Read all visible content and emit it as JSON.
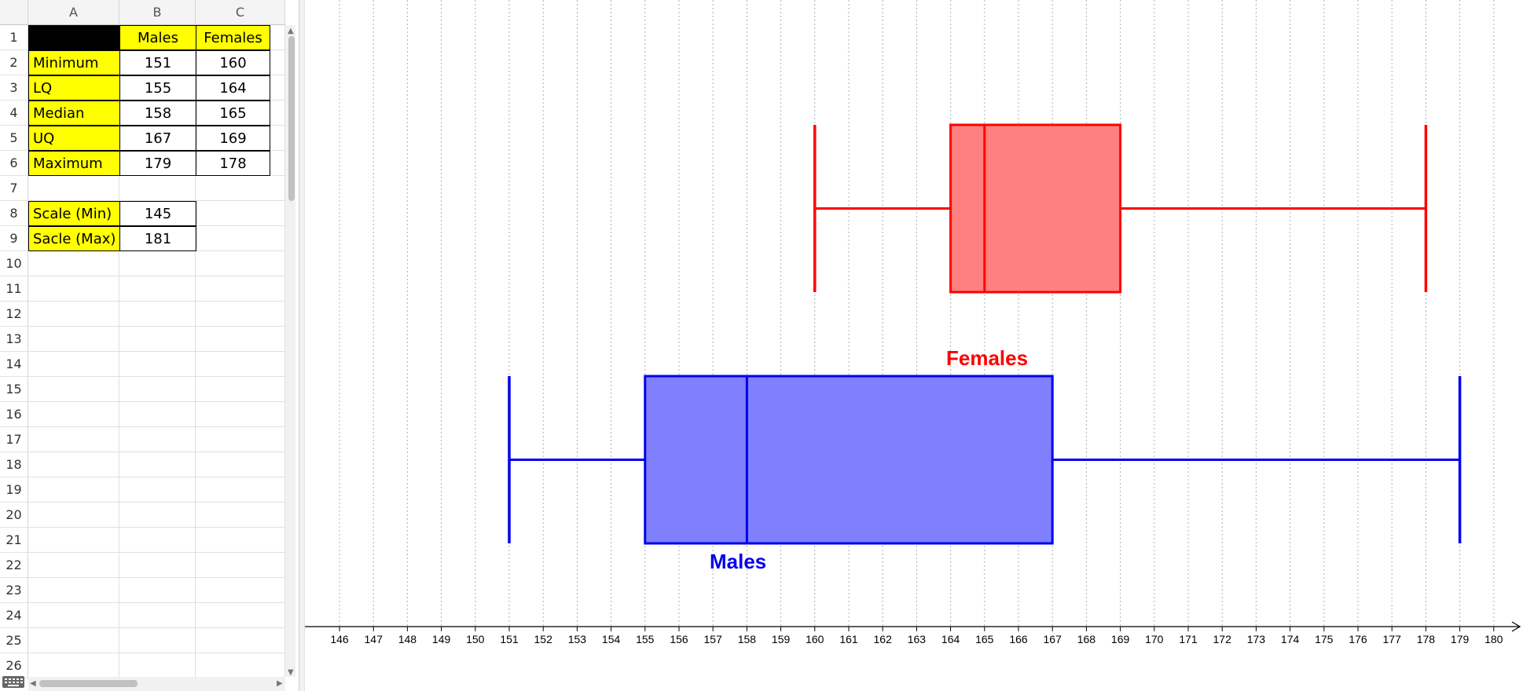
{
  "spreadsheet": {
    "column_headers": [
      "A",
      "B",
      "C"
    ],
    "row_numbers": [
      "1",
      "2",
      "3",
      "4",
      "5",
      "6",
      "7",
      "8",
      "9",
      "10",
      "11",
      "12",
      "13",
      "14",
      "15",
      "16",
      "17",
      "18",
      "19",
      "20",
      "21",
      "22",
      "23",
      "24",
      "25",
      "26"
    ],
    "header_row": {
      "b": "Males",
      "c": "Females"
    },
    "stats": [
      {
        "label": "Minimum",
        "males": "151",
        "females": "160"
      },
      {
        "label": "LQ",
        "males": "155",
        "females": "164"
      },
      {
        "label": "Median",
        "males": "158",
        "females": "165"
      },
      {
        "label": "UQ",
        "males": "167",
        "females": "169"
      },
      {
        "label": "Maximum",
        "males": "179",
        "females": "178"
      }
    ],
    "scale": [
      {
        "label": "Scale (Min)",
        "value": "145"
      },
      {
        "label": "Sacle (Max)",
        "value": "181"
      }
    ]
  },
  "chart_data": {
    "type": "boxplot",
    "x_ticks": [
      "146",
      "147",
      "148",
      "149",
      "150",
      "151",
      "152",
      "153",
      "154",
      "155",
      "156",
      "157",
      "158",
      "159",
      "160",
      "161",
      "162",
      "163",
      "164",
      "165",
      "166",
      "167",
      "168",
      "169",
      "170",
      "171",
      "172",
      "173",
      "174",
      "175",
      "176",
      "177",
      "178",
      "179",
      "180"
    ],
    "series": [
      {
        "name": "Females",
        "color": "#ff0000",
        "fill": "#ff8080",
        "min": 160,
        "lq": 164,
        "median": 165,
        "uq": 169,
        "max": 178
      },
      {
        "name": "Males",
        "color": "#0000ee",
        "fill": "#8080ff",
        "min": 151,
        "lq": 155,
        "median": 158,
        "uq": 167,
        "max": 179
      }
    ],
    "grid": true
  },
  "icons": {
    "keyboard": "keyboard-icon",
    "scroll_up": "triangle-up",
    "scroll_down": "triangle-down",
    "scroll_left": "triangle-left",
    "scroll_right": "triangle-right"
  }
}
